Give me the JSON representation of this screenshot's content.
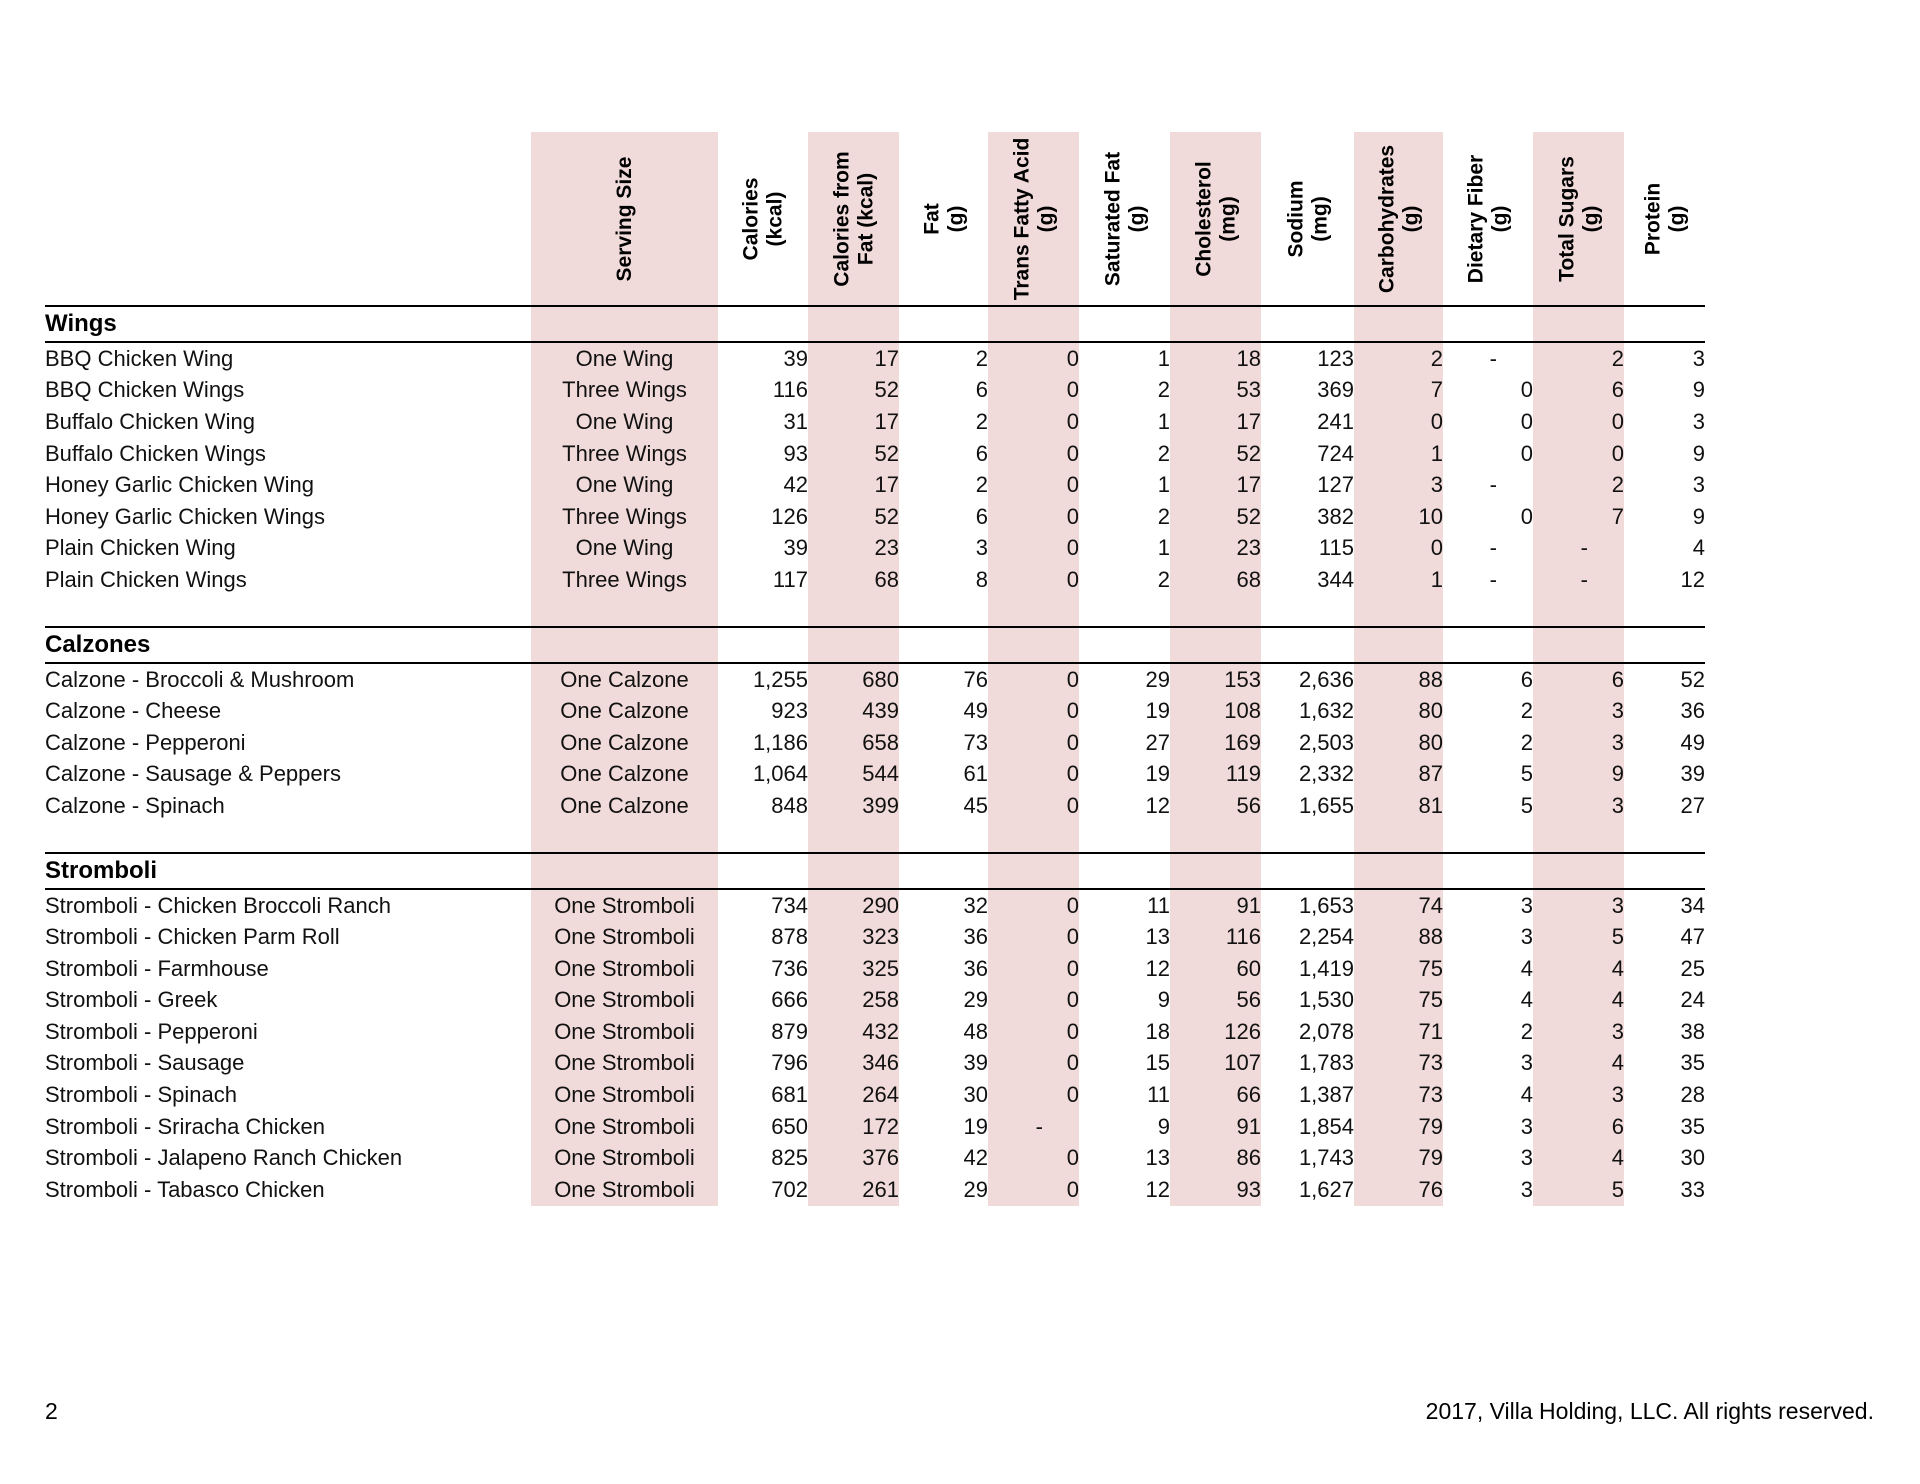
{
  "footer": {
    "page_number": "2",
    "copyright": "2017, Villa Holding, LLC. All rights reserved."
  },
  "table": {
    "columns": [
      {
        "label": "Serving Size",
        "shaded": true
      },
      {
        "label": "Calories\n(kcal)",
        "shaded": false
      },
      {
        "label": "Calories from\nFat (kcal)",
        "shaded": true
      },
      {
        "label": "Fat\n(g)",
        "shaded": false
      },
      {
        "label": "Trans Fatty Acid\n(g)",
        "shaded": true
      },
      {
        "label": "Saturated Fat\n(g)",
        "shaded": false
      },
      {
        "label": "Cholesterol\n(mg)",
        "shaded": true
      },
      {
        "label": "Sodium\n(mg)",
        "shaded": false
      },
      {
        "label": "Carbohydrates\n(g)",
        "shaded": true
      },
      {
        "label": "Dietary Fiber\n(g)",
        "shaded": false
      },
      {
        "label": "Total Sugars\n(g)",
        "shaded": true
      },
      {
        "label": "Protein\n(g)",
        "shaded": false
      }
    ],
    "sections": [
      {
        "title": "Wings",
        "rows": [
          {
            "name": "BBQ Chicken Wing",
            "values": [
              "One Wing",
              "39",
              "17",
              "2",
              "0",
              "1",
              "18",
              "123",
              "2",
              "-",
              "2",
              "3"
            ]
          },
          {
            "name": "BBQ Chicken Wings",
            "values": [
              "Three Wings",
              "116",
              "52",
              "6",
              "0",
              "2",
              "53",
              "369",
              "7",
              "0",
              "6",
              "9"
            ]
          },
          {
            "name": "Buffalo Chicken Wing",
            "values": [
              "One Wing",
              "31",
              "17",
              "2",
              "0",
              "1",
              "17",
              "241",
              "0",
              "0",
              "0",
              "3"
            ]
          },
          {
            "name": "Buffalo Chicken Wings",
            "values": [
              "Three Wings",
              "93",
              "52",
              "6",
              "0",
              "2",
              "52",
              "724",
              "1",
              "0",
              "0",
              "9"
            ]
          },
          {
            "name": "Honey Garlic Chicken Wing",
            "values": [
              "One Wing",
              "42",
              "17",
              "2",
              "0",
              "1",
              "17",
              "127",
              "3",
              "-",
              "2",
              "3"
            ]
          },
          {
            "name": "Honey Garlic Chicken Wings",
            "values": [
              "Three Wings",
              "126",
              "52",
              "6",
              "0",
              "2",
              "52",
              "382",
              "10",
              "0",
              "7",
              "9"
            ]
          },
          {
            "name": "Plain Chicken Wing",
            "values": [
              "One Wing",
              "39",
              "23",
              "3",
              "0",
              "1",
              "23",
              "115",
              "0",
              "-",
              "-",
              "4"
            ]
          },
          {
            "name": "Plain Chicken Wings",
            "values": [
              "Three Wings",
              "117",
              "68",
              "8",
              "0",
              "2",
              "68",
              "344",
              "1",
              "-",
              "-",
              "12"
            ]
          }
        ]
      },
      {
        "title": "Calzones",
        "rows": [
          {
            "name": "Calzone - Broccoli & Mushroom",
            "values": [
              "One Calzone",
              "1,255",
              "680",
              "76",
              "0",
              "29",
              "153",
              "2,636",
              "88",
              "6",
              "6",
              "52"
            ]
          },
          {
            "name": "Calzone - Cheese",
            "values": [
              "One Calzone",
              "923",
              "439",
              "49",
              "0",
              "19",
              "108",
              "1,632",
              "80",
              "2",
              "3",
              "36"
            ]
          },
          {
            "name": "Calzone - Pepperoni",
            "values": [
              "One Calzone",
              "1,186",
              "658",
              "73",
              "0",
              "27",
              "169",
              "2,503",
              "80",
              "2",
              "3",
              "49"
            ]
          },
          {
            "name": "Calzone - Sausage & Peppers",
            "values": [
              "One Calzone",
              "1,064",
              "544",
              "61",
              "0",
              "19",
              "119",
              "2,332",
              "87",
              "5",
              "9",
              "39"
            ]
          },
          {
            "name": "Calzone - Spinach",
            "values": [
              "One Calzone",
              "848",
              "399",
              "45",
              "0",
              "12",
              "56",
              "1,655",
              "81",
              "5",
              "3",
              "27"
            ]
          }
        ]
      },
      {
        "title": "Stromboli",
        "rows": [
          {
            "name": "Stromboli - Chicken Broccoli Ranch",
            "values": [
              "One Stromboli",
              "734",
              "290",
              "32",
              "0",
              "11",
              "91",
              "1,653",
              "74",
              "3",
              "3",
              "34"
            ]
          },
          {
            "name": "Stromboli - Chicken Parm Roll",
            "values": [
              "One Stromboli",
              "878",
              "323",
              "36",
              "0",
              "13",
              "116",
              "2,254",
              "88",
              "3",
              "5",
              "47"
            ]
          },
          {
            "name": "Stromboli - Farmhouse",
            "values": [
              "One Stromboli",
              "736",
              "325",
              "36",
              "0",
              "12",
              "60",
              "1,419",
              "75",
              "4",
              "4",
              "25"
            ]
          },
          {
            "name": "Stromboli - Greek",
            "values": [
              "One Stromboli",
              "666",
              "258",
              "29",
              "0",
              "9",
              "56",
              "1,530",
              "75",
              "4",
              "4",
              "24"
            ]
          },
          {
            "name": "Stromboli - Pepperoni",
            "values": [
              "One Stromboli",
              "879",
              "432",
              "48",
              "0",
              "18",
              "126",
              "2,078",
              "71",
              "2",
              "3",
              "38"
            ]
          },
          {
            "name": "Stromboli - Sausage",
            "values": [
              "One Stromboli",
              "796",
              "346",
              "39",
              "0",
              "15",
              "107",
              "1,783",
              "73",
              "3",
              "4",
              "35"
            ]
          },
          {
            "name": "Stromboli - Spinach",
            "values": [
              "One Stromboli",
              "681",
              "264",
              "30",
              "0",
              "11",
              "66",
              "1,387",
              "73",
              "4",
              "3",
              "28"
            ]
          },
          {
            "name": "Stromboli - Sriracha Chicken",
            "values": [
              "One Stromboli",
              "650",
              "172",
              "19",
              "-",
              "9",
              "91",
              "1,854",
              "79",
              "3",
              "6",
              "35"
            ]
          },
          {
            "name": "Stromboli - Jalapeno Ranch Chicken",
            "values": [
              "One Stromboli",
              "825",
              "376",
              "42",
              "0",
              "13",
              "86",
              "1,743",
              "79",
              "3",
              "4",
              "30"
            ]
          },
          {
            "name": "Stromboli - Tabasco Chicken",
            "values": [
              "One Stromboli",
              "702",
              "261",
              "29",
              "0",
              "12",
              "93",
              "1,627",
              "76",
              "3",
              "5",
              "33"
            ]
          }
        ]
      }
    ]
  }
}
